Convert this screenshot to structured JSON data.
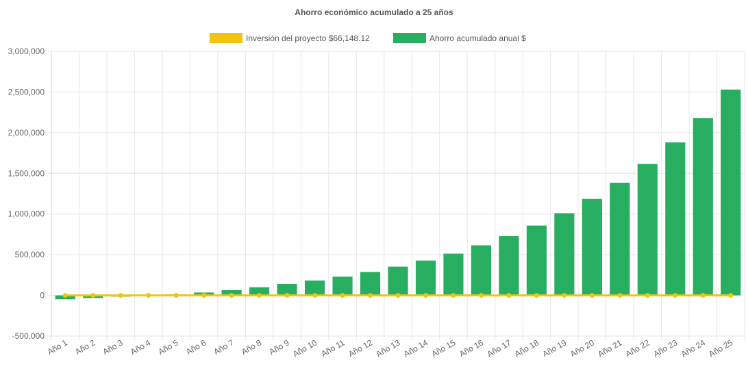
{
  "chart_data": {
    "type": "bar",
    "title": "Ahorro económico acumulado a 25 años",
    "categories": [
      "Año 1",
      "Año 2",
      "Año 3",
      "Año 4",
      "Año 5",
      "Año 6",
      "Año 7",
      "Año 8",
      "Año 9",
      "Año 10",
      "Año 11",
      "Año 12",
      "Año 13",
      "Año 14",
      "Año 15",
      "Año 16",
      "Año 17",
      "Año 18",
      "Año 19",
      "Año 20",
      "Año 21",
      "Año 22",
      "Año 23",
      "Año 24",
      "Año 25"
    ],
    "series": [
      {
        "name": "Inversión del proyecto $66,148.12",
        "type": "line",
        "color": "#f1c40f",
        "values": [
          0,
          0,
          0,
          0,
          0,
          0,
          0,
          0,
          0,
          0,
          0,
          0,
          0,
          0,
          0,
          0,
          0,
          0,
          0,
          0,
          0,
          0,
          0,
          0,
          0
        ]
      },
      {
        "name": "Ahorro acumulado anual $",
        "type": "bar",
        "color": "#27ae60",
        "values": [
          -48000,
          -33000,
          -15000,
          -3000,
          12000,
          35000,
          65000,
          100000,
          140000,
          183000,
          230000,
          288000,
          353000,
          428000,
          513000,
          615000,
          728000,
          858000,
          1010000,
          1185000,
          1385000,
          1615000,
          1880000,
          2180000,
          2530000
        ]
      }
    ],
    "ylim": [
      -500000,
      3000000
    ],
    "yticks": [
      3000000,
      2500000,
      2000000,
      1500000,
      1000000,
      500000,
      0,
      -500000
    ],
    "ytick_labels": [
      "3,000,000",
      "2,500,000",
      "2,000,000",
      "1,500,000",
      "1,000,000",
      "500,000",
      "0",
      "-500,000"
    ],
    "xlabel": "",
    "ylabel": "",
    "grid": true,
    "legend_position": "top-center"
  }
}
